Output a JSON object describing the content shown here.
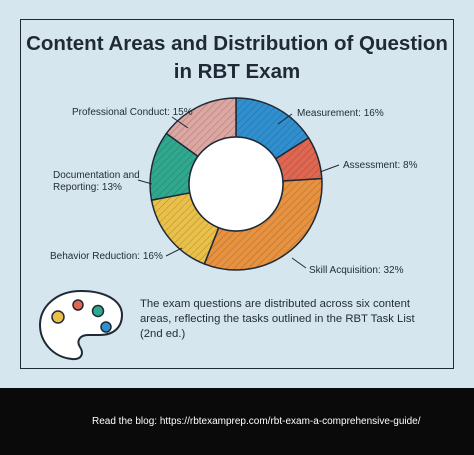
{
  "title_line1": "Content Areas and Distribution of Question",
  "title_line2": "in RBT Exam",
  "caption": "The exam questions are distributed across six content areas, reflecting the tasks outlined in the RBT Task List (2nd ed.)",
  "footer": {
    "prefix": "Read the blog:",
    "url": "https://rbtexamprep.com/rbt-exam-a-comprehensive-guide/"
  },
  "colors": {
    "background": "#d6e6ee",
    "outline": "#1f2a36",
    "footer_bg": "#0a0a0a"
  },
  "icons": [
    "palette-icon"
  ],
  "chart_data": {
    "type": "pie",
    "donut": true,
    "title": "Content Areas and Distribution of Question in RBT Exam",
    "slices": [
      {
        "label": "Measurement: 16%",
        "name": "Measurement",
        "value": 16,
        "color": "#2f8fcf"
      },
      {
        "label": "Assessment: 8%",
        "name": "Assessment",
        "value": 8,
        "color": "#e06650"
      },
      {
        "label": "Skill Acquisition: 32%",
        "name": "Skill Acquisition",
        "value": 32,
        "color": "#e8913e"
      },
      {
        "label": "Behavior Reduction: 16%",
        "name": "Behavior Reduction",
        "value": 16,
        "color": "#eac048"
      },
      {
        "label": "Documentation and Reporting: 13%",
        "name": "Documentation and Reporting",
        "value": 13,
        "color": "#2fa88e"
      },
      {
        "label": "Professional Conduct: 15%",
        "name": "Professional Conduct",
        "value": 15,
        "color": "#dea6a0"
      }
    ]
  }
}
